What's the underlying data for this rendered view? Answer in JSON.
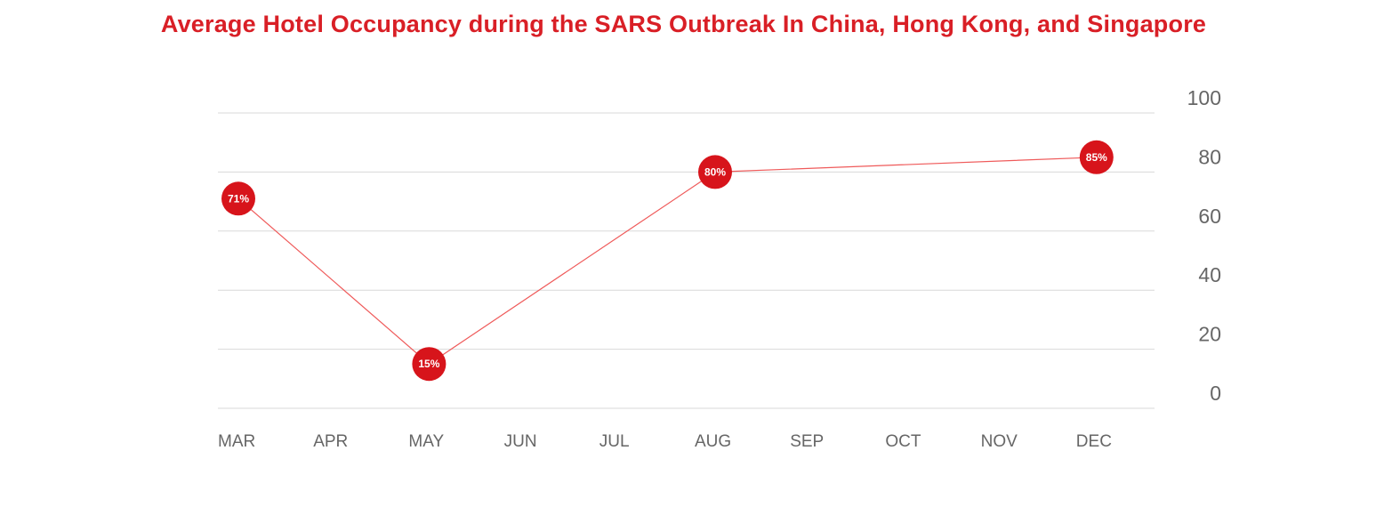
{
  "chart_data": {
    "type": "line",
    "title": "Average Hotel Occupancy during the SARS Outbreak In China, Hong Kong, and Singapore",
    "xlabel": "",
    "ylabel": "",
    "categories": [
      "MAR",
      "APR",
      "MAY",
      "JUN",
      "JUL",
      "AUG",
      "SEP",
      "OCT",
      "NOV",
      "DEC"
    ],
    "y_ticks": [
      0,
      20,
      40,
      60,
      80,
      100
    ],
    "ylim": [
      0,
      100
    ],
    "y_axis_side": "right",
    "grid": true,
    "legend": "none",
    "series": [
      {
        "points": [
          {
            "x": "MAR",
            "y": 71,
            "label": "71%"
          },
          {
            "x": "MAY",
            "y": 15,
            "label": "15%"
          },
          {
            "x": "AUG",
            "y": 80,
            "label": "80%"
          },
          {
            "x": "DEC",
            "y": 85,
            "label": "85%"
          }
        ]
      }
    ],
    "colors": {
      "title": "#d91f26",
      "line": "#ef5a5a",
      "marker": "#d7141b",
      "marker_text": "#ffffff",
      "grid": "#d9d9d9",
      "tick_text": "#666666"
    }
  }
}
